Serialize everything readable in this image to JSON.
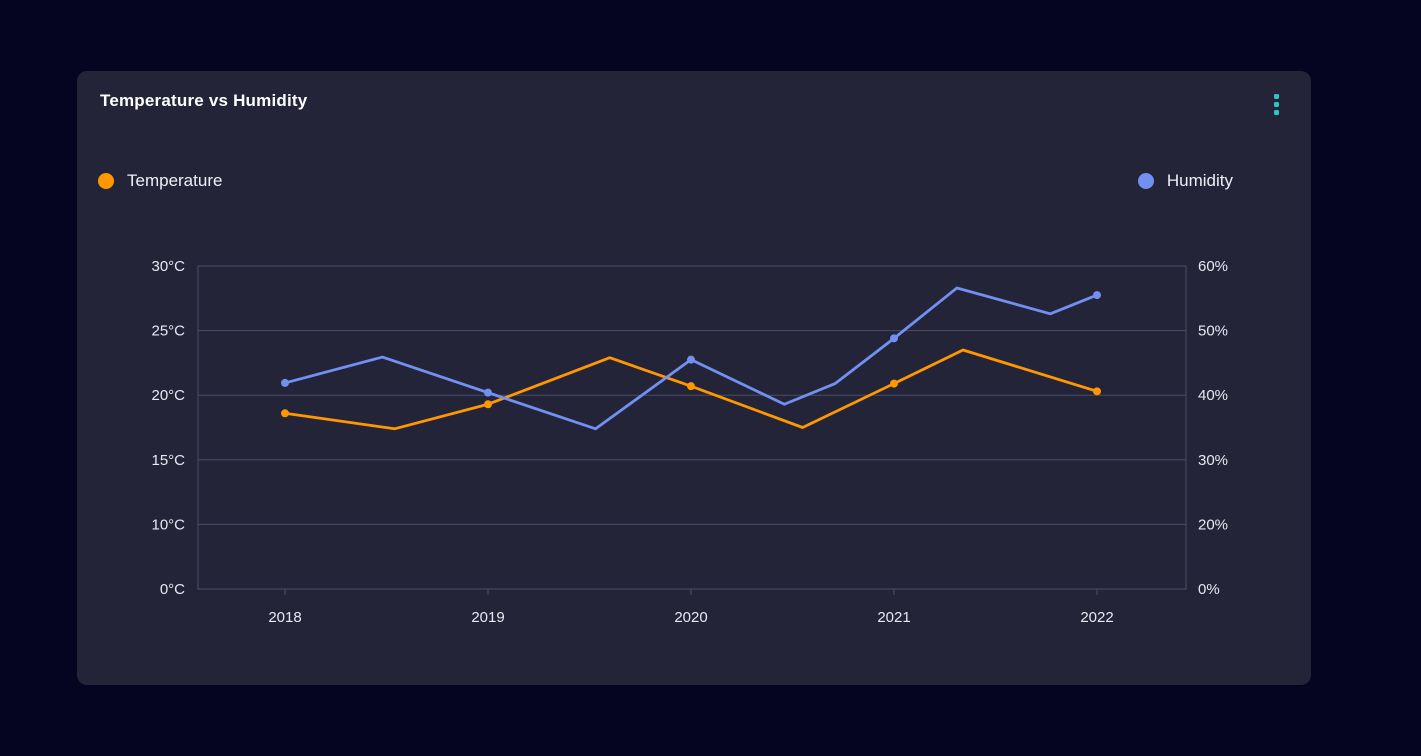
{
  "card": {
    "title": "Temperature vs Humidity"
  },
  "menu": {
    "icon": "vertical-ellipsis"
  },
  "legend": [
    {
      "label": "Temperature",
      "color": "#ff9800"
    },
    {
      "label": "Humidity",
      "color": "#7190f2"
    }
  ],
  "colors": {
    "page_background": "#050521",
    "card_background": "#242439",
    "menu_icon": "#2bc6c6",
    "grid": "#4b4b64",
    "axis_text": "#e7e9f1",
    "title_text": "#ffffff",
    "temperature_series": "#ff9800",
    "humidity_series": "#7190f2"
  },
  "chart_data": {
    "type": "line",
    "title": "Temperature vs Humidity",
    "grid": "horizontal gridlines only, full plot border",
    "legend_position": "top, split left/right",
    "x_axis": {
      "tick_labels": [
        "2018",
        "2019",
        "2020",
        "2021",
        "2022"
      ],
      "tick_values": [
        2018,
        2019,
        2020,
        2021,
        2022
      ],
      "range": [
        2018,
        2022
      ]
    },
    "y_axis_left": {
      "name": "Temperature",
      "unit": "°C",
      "tick_labels": [
        "0°C",
        "10°C",
        "15°C",
        "20°C",
        "25°C",
        "30°C"
      ],
      "tick_values": [
        0,
        10,
        15,
        20,
        25,
        30
      ],
      "range": [
        0,
        30
      ]
    },
    "y_axis_right": {
      "name": "Humidity",
      "unit": "%",
      "tick_labels": [
        "0%",
        "20%",
        "30%",
        "40%",
        "50%",
        "60%"
      ],
      "tick_values": [
        0,
        20,
        30,
        40,
        50,
        60
      ],
      "range": [
        0,
        60
      ]
    },
    "series": [
      {
        "name": "Temperature",
        "axis": "left",
        "color": "#ff9800",
        "points": [
          {
            "x": 2018.0,
            "y": 18.6,
            "marker": true
          },
          {
            "x": 2018.54,
            "y": 17.4,
            "marker": false
          },
          {
            "x": 2019.0,
            "y": 19.3,
            "marker": true
          },
          {
            "x": 2019.6,
            "y": 22.9,
            "marker": false
          },
          {
            "x": 2020.0,
            "y": 20.7,
            "marker": true
          },
          {
            "x": 2020.55,
            "y": 17.5,
            "marker": false
          },
          {
            "x": 2021.0,
            "y": 20.9,
            "marker": true
          },
          {
            "x": 2021.34,
            "y": 23.5,
            "marker": false
          },
          {
            "x": 2022.0,
            "y": 20.3,
            "marker": true
          }
        ]
      },
      {
        "name": "Humidity",
        "axis": "right",
        "color": "#7190f2",
        "points": [
          {
            "x": 2018.0,
            "y": 41.9,
            "marker": true
          },
          {
            "x": 2018.48,
            "y": 45.9,
            "marker": false
          },
          {
            "x": 2019.0,
            "y": 40.4,
            "marker": true
          },
          {
            "x": 2019.53,
            "y": 34.8,
            "marker": false
          },
          {
            "x": 2020.0,
            "y": 45.5,
            "marker": true
          },
          {
            "x": 2020.46,
            "y": 38.6,
            "marker": false
          },
          {
            "x": 2020.71,
            "y": 41.8,
            "marker": false
          },
          {
            "x": 2021.0,
            "y": 48.8,
            "marker": true
          },
          {
            "x": 2021.31,
            "y": 56.6,
            "marker": false
          },
          {
            "x": 2021.77,
            "y": 52.6,
            "marker": false
          },
          {
            "x": 2022.0,
            "y": 55.5,
            "marker": true
          }
        ]
      }
    ]
  }
}
